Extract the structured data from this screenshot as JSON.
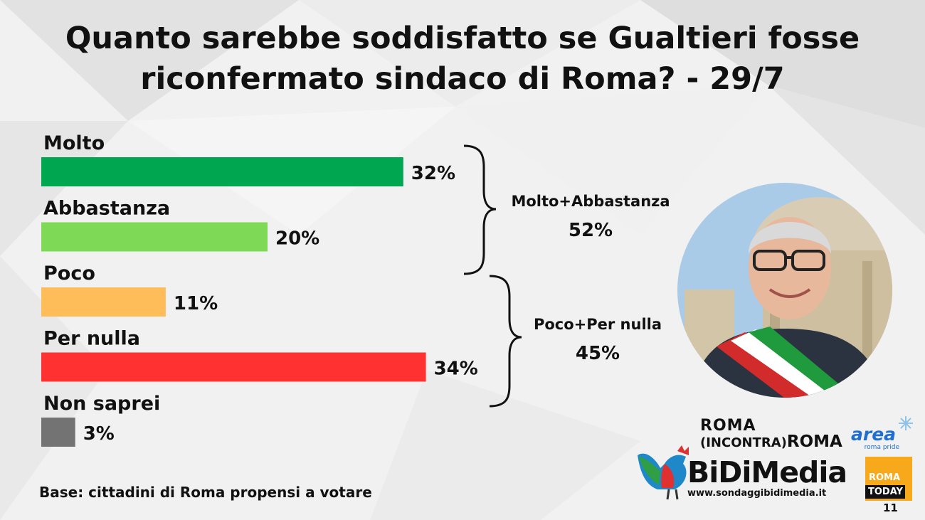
{
  "title_line1": "Quanto sarebbe soddisfatto se Gualtieri fosse",
  "title_line2": "riconfermato sindaco di Roma? - 29/7",
  "chart_data": {
    "type": "bar",
    "orientation": "horizontal",
    "categories": [
      "Molto",
      "Abbastanza",
      "Poco",
      "Per nulla",
      "Non saprei"
    ],
    "values": [
      32,
      20,
      11,
      34,
      3
    ],
    "value_labels": [
      "32%",
      "20%",
      "11%",
      "34%",
      "3%"
    ],
    "colors": [
      "#00a650",
      "#7ed957",
      "#ffbd59",
      "#ff3131",
      "#737373"
    ],
    "unit": "%",
    "grid": false,
    "groups": [
      {
        "name": "Molto+Abbastanza",
        "value": 52,
        "label": "52%",
        "categories": [
          "Molto",
          "Abbastanza"
        ]
      },
      {
        "name": "Poco+Per nulla",
        "value": 45,
        "label": "45%",
        "categories": [
          "Poco",
          "Per nulla"
        ]
      }
    ]
  },
  "footer": "Base: cittadini di Roma propensi a votare",
  "page_number": "11",
  "logos": {
    "roma_incontra_roma_line1": "ROMA",
    "roma_incontra_roma_line2a": "(INCONTRA)",
    "roma_incontra_roma_line2b": "ROMA",
    "area_name": "area",
    "area_sub": "roma pride",
    "bidimedia_name": "BiDiMedia",
    "bidimedia_url": "www.sondaggibidimedia.it",
    "romatoday_line1": "ROMA",
    "romatoday_line2": "TODAY"
  }
}
